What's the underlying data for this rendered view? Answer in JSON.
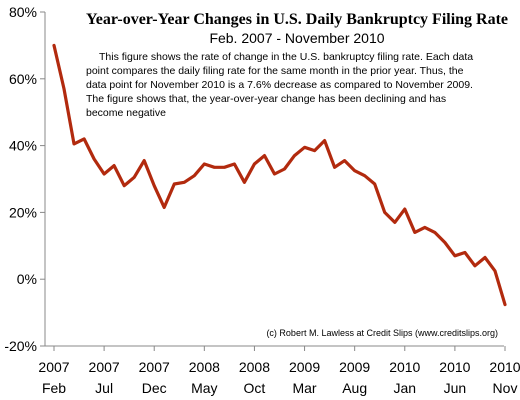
{
  "chart_data": {
    "type": "line",
    "title": "Year-over-Year Changes in U.S. Daily Bankruptcy Filing Rate",
    "subtitle": "Feb. 2007  -  November 2010",
    "description": [
      "This figure shows the rate of change in the U.S. bankruptcy filing rate. Each data",
      "point compares the daily filing rate for the same month in the prior year. Thus, the",
      "data point for November 2010 is a 7.6% decrease as compared to November 2009.",
      "The figure shows that, the year-over-year change has been declining and has",
      "become negative"
    ],
    "credit": "(c) Robert M. Lawless at Credit Slips (www.creditslips.org)",
    "ylim": [
      -20,
      80
    ],
    "yticks": [
      "-20%",
      "0%",
      "20%",
      "40%",
      "60%",
      "80%"
    ],
    "xlim": [
      0,
      45
    ],
    "xticks": [
      {
        "top": "2007",
        "bottom": "Feb",
        "index": 0
      },
      {
        "top": "2007",
        "bottom": "Jul",
        "index": 5
      },
      {
        "top": "2007",
        "bottom": "Dec",
        "index": 10
      },
      {
        "top": "2008",
        "bottom": "May",
        "index": 15
      },
      {
        "top": "2008",
        "bottom": "Oct",
        "index": 20
      },
      {
        "top": "2009",
        "bottom": "Mar",
        "index": 25
      },
      {
        "top": "2009",
        "bottom": "Aug",
        "index": 30
      },
      {
        "top": "2010",
        "bottom": "Jan",
        "index": 35
      },
      {
        "top": "2010",
        "bottom": "Jun",
        "index": 40
      },
      {
        "top": "2010",
        "bottom": "Nov",
        "index": 45
      }
    ],
    "series": [
      {
        "color": "#b22a0e",
        "values": [
          70,
          57,
          40.5,
          42,
          36,
          31.5,
          34,
          28,
          30.5,
          35.5,
          28,
          21.5,
          28.5,
          29,
          31,
          34.5,
          33.5,
          33.5,
          34.5,
          29,
          34.5,
          37,
          31.5,
          33,
          37,
          39.5,
          38.5,
          41.5,
          33.5,
          35.5,
          32.5,
          31,
          28.5,
          20,
          17,
          21,
          14,
          15.5,
          14,
          11,
          7,
          8,
          4,
          6.5,
          2.5,
          -7.6
        ]
      }
    ]
  }
}
